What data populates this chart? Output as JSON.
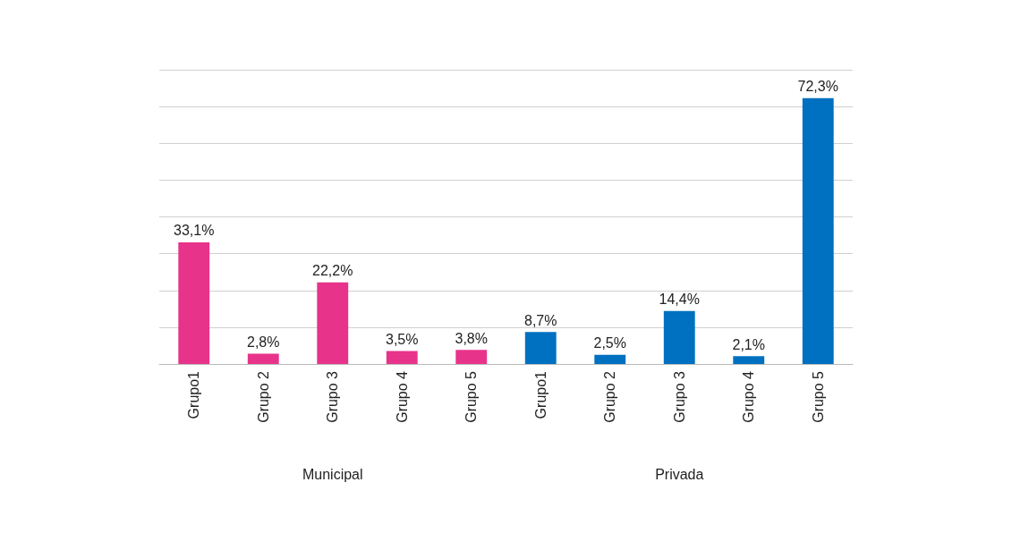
{
  "chart_data": {
    "type": "bar",
    "categories": [
      "Grupo1",
      "Grupo 2",
      "Grupo 3",
      "Grupo 4",
      "Grupo 5",
      "Grupo1",
      "Grupo 2",
      "Grupo 3",
      "Grupo 4",
      "Grupo 5"
    ],
    "values": [
      33.1,
      2.8,
      22.2,
      3.5,
      3.8,
      8.7,
      2.5,
      14.4,
      2.1,
      72.3
    ],
    "colors": [
      "#e8338a",
      "#e8338a",
      "#e8338a",
      "#e8338a",
      "#e8338a",
      "#0070c0",
      "#0070c0",
      "#0070c0",
      "#0070c0",
      "#0070c0"
    ],
    "value_labels": [
      "33,1%",
      "2,8%",
      "22,2%",
      "3,5%",
      "3,8%",
      "8,7%",
      "2,5%",
      "14,4%",
      "2,1%",
      "72,3%"
    ],
    "annotations": [
      "Municipal",
      "Privada"
    ],
    "ylim": [
      0,
      80
    ],
    "yticks": [
      {
        "value": 0,
        "label": null
      },
      {
        "value": 10,
        "label": null
      },
      {
        "value": 20,
        "label": null
      },
      {
        "value": 30,
        "label": null
      },
      {
        "value": 40,
        "label": null
      },
      {
        "value": 50,
        "label": null
      },
      {
        "value": 60,
        "label": null
      },
      {
        "value": 70,
        "label": null
      },
      {
        "value": 80,
        "label": null
      }
    ],
    "grid": "y",
    "tick_labels": "x"
  }
}
